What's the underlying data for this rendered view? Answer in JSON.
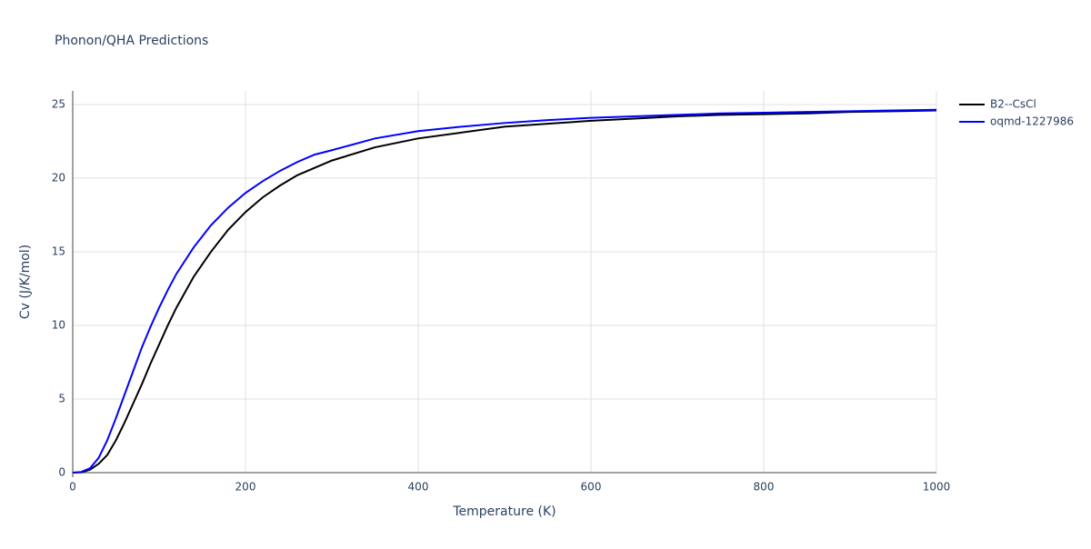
{
  "chart_data": {
    "type": "line",
    "title": "Phonon/QHA Predictions",
    "x_label": "Temperature (K)",
    "y_label": "Cv (J/K/mol)",
    "x": [
      0,
      10,
      20,
      30,
      40,
      50,
      60,
      70,
      80,
      90,
      100,
      110,
      120,
      140,
      160,
      180,
      200,
      220,
      240,
      260,
      280,
      300,
      350,
      400,
      450,
      500,
      550,
      600,
      650,
      700,
      750,
      800,
      850,
      900,
      950,
      1000
    ],
    "series": [
      {
        "name": "B2--CsCl",
        "color": "#000000",
        "values": [
          0,
          0.02,
          0.2,
          0.6,
          1.2,
          2.2,
          3.4,
          4.7,
          6.0,
          7.4,
          8.7,
          10.0,
          11.2,
          13.3,
          15.0,
          16.5,
          17.7,
          18.7,
          19.5,
          20.2,
          20.7,
          21.2,
          22.1,
          22.7,
          23.1,
          23.5,
          23.7,
          23.9,
          24.05,
          24.2,
          24.3,
          24.35,
          24.4,
          24.5,
          24.55,
          24.6
        ]
      },
      {
        "name": "oqmd-1227986",
        "color": "#0000ff",
        "values": [
          0,
          0.05,
          0.3,
          1.0,
          2.2,
          3.7,
          5.3,
          6.9,
          8.5,
          9.9,
          11.2,
          12.4,
          13.5,
          15.3,
          16.8,
          18.0,
          19.0,
          19.8,
          20.5,
          21.1,
          21.6,
          21.9,
          22.7,
          23.2,
          23.5,
          23.75,
          23.95,
          24.1,
          24.2,
          24.3,
          24.4,
          24.45,
          24.5,
          24.55,
          24.6,
          24.65
        ]
      }
    ],
    "xlim": [
      0,
      1000
    ],
    "xticks": [
      0,
      200,
      400,
      600,
      800,
      1000
    ],
    "ylim": [
      0,
      25.93
    ],
    "yticks": [
      0,
      5,
      10,
      15,
      20,
      25
    ],
    "grid": true,
    "legend": "top-right"
  }
}
